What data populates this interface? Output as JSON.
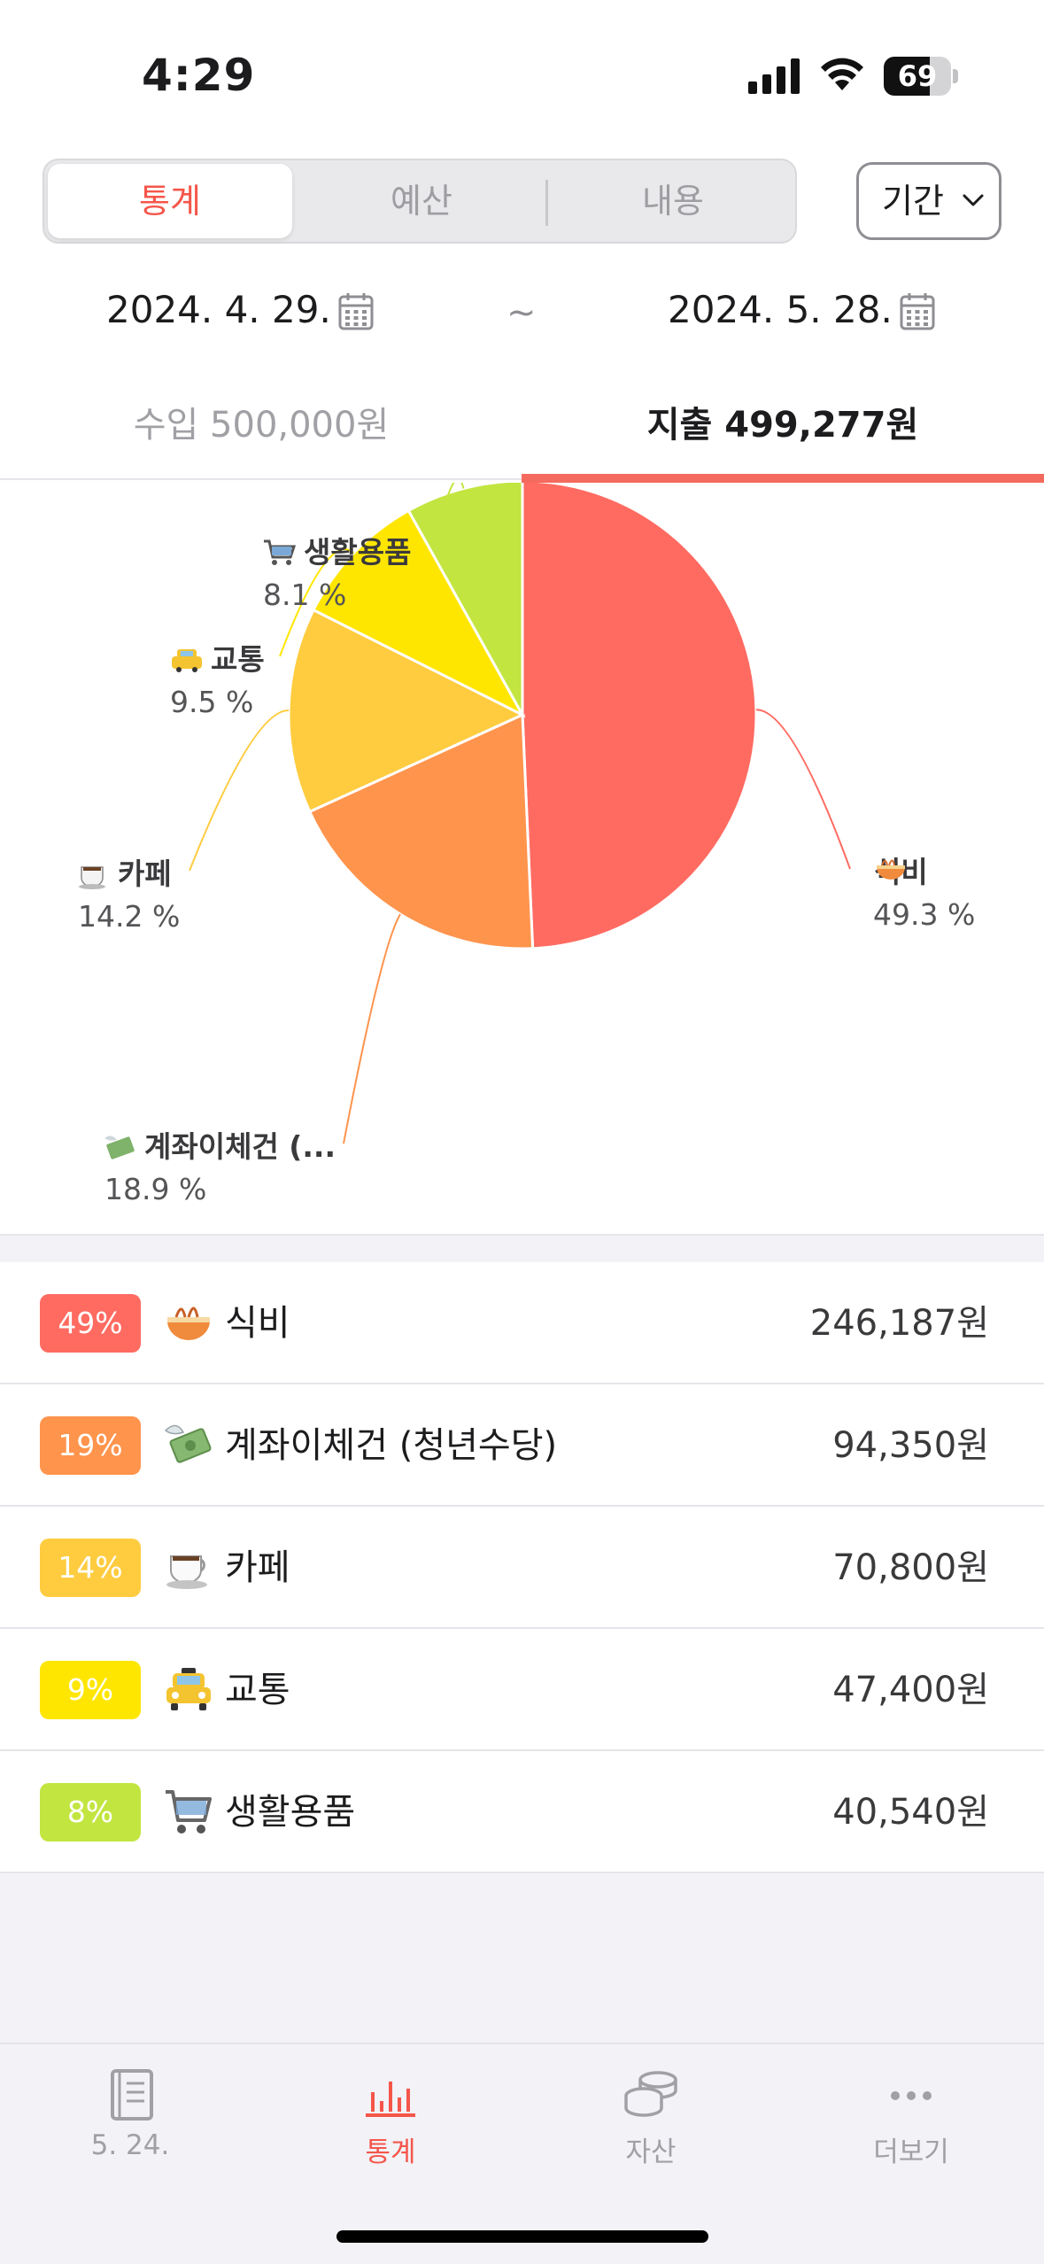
{
  "status_bar": {
    "time": "4:29",
    "battery": "69",
    "battery_level": 0.69,
    "icons": [
      "signal-icon",
      "wifi-icon",
      "battery-icon"
    ]
  },
  "segmented": {
    "tabs": [
      "통계",
      "예산",
      "내용"
    ],
    "active": "통계"
  },
  "period_button": {
    "label": "기간",
    "icon": "chevron-down-icon"
  },
  "date_range": {
    "start": "2024. 4. 29.",
    "separator": "~",
    "end": "2024. 5. 28."
  },
  "summary_tabs": {
    "income": "수입 500,000원",
    "expense": "지출 499,277원",
    "active": "expense"
  },
  "chart_data": {
    "type": "pie",
    "slices": [
      {
        "name": "식비",
        "emoji": "🍜",
        "label": "식비",
        "percent": 49.3,
        "percent_text": "49.3 %",
        "color": "#ff6b61"
      },
      {
        "name": "계좌이체건 (청년수당)",
        "emoji": "💸",
        "label": "계좌이체건 (...",
        "percent": 18.9,
        "percent_text": "18.9 %",
        "color": "#ff944d"
      },
      {
        "name": "카페",
        "emoji": "☕",
        "label": "카페",
        "percent": 14.2,
        "percent_text": "14.2 %",
        "color": "#ffcc40"
      },
      {
        "name": "교통",
        "emoji": "🚖",
        "label": "교통",
        "percent": 9.5,
        "percent_text": "9.5 %",
        "color": "#ffe600"
      },
      {
        "name": "생활용품",
        "emoji": "🛒",
        "label": "생활용품",
        "percent": 8.1,
        "percent_text": "8.1 %",
        "color": "#c2e540"
      }
    ]
  },
  "categories": [
    {
      "badge": "49%",
      "color": "#ff6b61",
      "emoji": "🍜",
      "icon": "noodle-bowl-icon",
      "name": "식비",
      "amount": "246,187원"
    },
    {
      "badge": "19%",
      "color": "#ff944d",
      "emoji": "💸",
      "icon": "money-wings-icon",
      "name": "계좌이체건 (청년수당)",
      "amount": "94,350원"
    },
    {
      "badge": "14%",
      "color": "#ffcc40",
      "emoji": "☕",
      "icon": "coffee-icon",
      "name": "카페",
      "amount": "70,800원"
    },
    {
      "badge": "9%",
      "color": "#ffe600",
      "emoji": "🚖",
      "icon": "taxi-icon",
      "name": "교통",
      "amount": "47,400원"
    },
    {
      "badge": "8%",
      "color": "#c2e540",
      "emoji": "🛒",
      "icon": "shopping-cart-icon",
      "name": "생활용품",
      "amount": "40,540원"
    }
  ],
  "tab_bar": {
    "items": [
      {
        "label": "5. 24.",
        "icon": "ledger-book-icon"
      },
      {
        "label": "통계",
        "icon": "bar-chart-icon"
      },
      {
        "label": "자산",
        "icon": "coins-icon"
      },
      {
        "label": "더보기",
        "icon": "more-dots-icon"
      }
    ],
    "active": "통계"
  },
  "colors": {
    "accent": "#f5564a",
    "inactive": "#a0a0a5"
  }
}
